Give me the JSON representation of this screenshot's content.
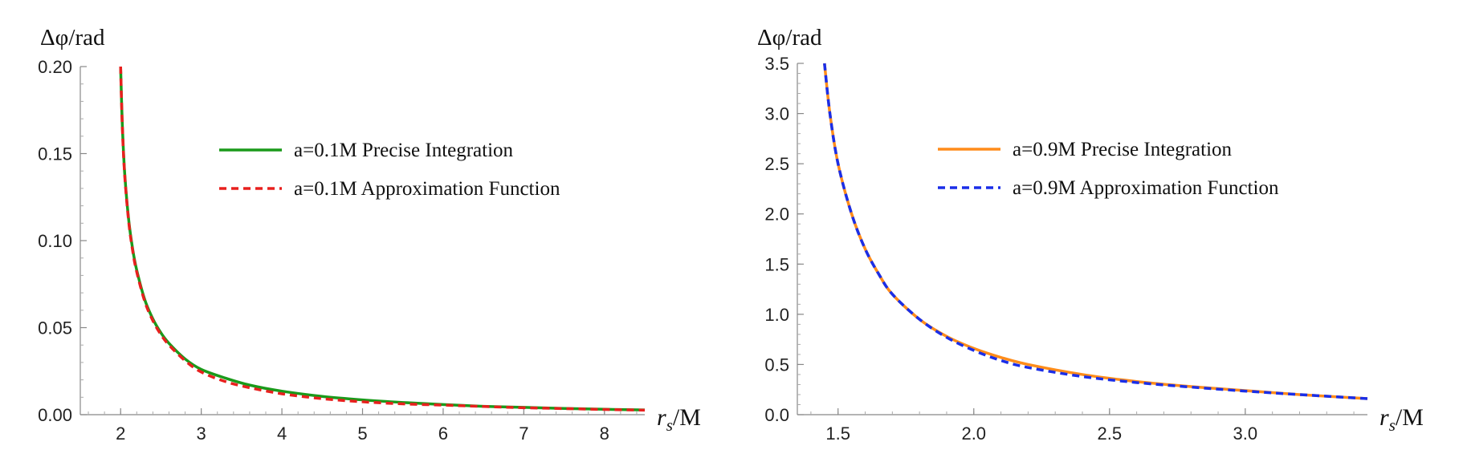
{
  "chart_data": [
    {
      "type": "line",
      "ylabel": "Δφ/rad",
      "xlabel_main": "r",
      "xlabel_sub": "s",
      "xlabel_suffix": "/M",
      "xlim": [
        1.5,
        8.5
      ],
      "ylim": [
        0,
        0.2
      ],
      "xticks": [
        2,
        3,
        4,
        5,
        6,
        7,
        8
      ],
      "xtick_labels": [
        "2",
        "3",
        "4",
        "5",
        "6",
        "7",
        "8"
      ],
      "yticks": [
        0,
        0.05,
        0.1,
        0.15,
        0.2
      ],
      "ytick_labels": [
        "0.00",
        "0.05",
        "0.10",
        "0.15",
        "0.20"
      ],
      "series": [
        {
          "name": "a=0.1M Precise Integration",
          "color": "#1a9a1a",
          "dash": false,
          "x": [
            2.0,
            2.02,
            2.05,
            2.1,
            2.15,
            2.2,
            2.3,
            2.4,
            2.5,
            2.6,
            2.8,
            3.0,
            3.3,
            3.6,
            4.0,
            4.5,
            5.0,
            5.5,
            6.0,
            6.5,
            7.0,
            7.5,
            8.0,
            8.5
          ],
          "y": [
            0.2,
            0.168,
            0.139,
            0.112,
            0.095,
            0.083,
            0.066,
            0.055,
            0.047,
            0.041,
            0.032,
            0.026,
            0.021,
            0.017,
            0.0135,
            0.0105,
            0.0085,
            0.007,
            0.0058,
            0.0048,
            0.0042,
            0.0036,
            0.0031,
            0.0027
          ]
        },
        {
          "name": "a=0.1M Approximation Function",
          "color": "#e8201e",
          "dash": true,
          "x": [
            2.0,
            2.02,
            2.05,
            2.1,
            2.15,
            2.2,
            2.3,
            2.4,
            2.5,
            2.6,
            2.8,
            3.0,
            3.3,
            3.6,
            4.0,
            4.5,
            5.0,
            5.5,
            6.0,
            6.5,
            7.0,
            7.5,
            8.0,
            8.5
          ],
          "y": [
            0.2,
            0.167,
            0.138,
            0.111,
            0.094,
            0.082,
            0.065,
            0.054,
            0.046,
            0.04,
            0.031,
            0.0245,
            0.019,
            0.0155,
            0.012,
            0.0092,
            0.0074,
            0.0062,
            0.0055,
            0.0047,
            0.004,
            0.0035,
            0.003,
            0.0026
          ]
        }
      ]
    },
    {
      "type": "line",
      "ylabel": "Δφ/rad",
      "xlabel_main": "r",
      "xlabel_sub": "s",
      "xlabel_suffix": "/M",
      "xlim": [
        1.35,
        3.45
      ],
      "ylim": [
        0,
        3.5
      ],
      "xticks": [
        1.5,
        2.0,
        2.5,
        3.0
      ],
      "xtick_labels": [
        "1.5",
        "2.0",
        "2.5",
        "3.0"
      ],
      "yticks": [
        0,
        0.5,
        1.0,
        1.5,
        2.0,
        2.5,
        3.0,
        3.5
      ],
      "ytick_labels": [
        "0.0",
        "0.5",
        "1.0",
        "1.5",
        "2.0",
        "2.5",
        "3.0",
        "3.5"
      ],
      "series": [
        {
          "name": "a=0.9M Precise Integration",
          "color": "#ff8c1a",
          "dash": false,
          "x": [
            1.45,
            1.47,
            1.5,
            1.55,
            1.6,
            1.65,
            1.7,
            1.8,
            1.9,
            2.0,
            2.1,
            2.2,
            2.4,
            2.6,
            2.8,
            3.0,
            3.2,
            3.45
          ],
          "y": [
            3.5,
            3.0,
            2.5,
            2.0,
            1.65,
            1.4,
            1.2,
            0.95,
            0.78,
            0.66,
            0.57,
            0.5,
            0.4,
            0.33,
            0.28,
            0.24,
            0.2,
            0.16
          ]
        },
        {
          "name": "a=0.9M Approximation Function",
          "color": "#1a2ee8",
          "dash": true,
          "x": [
            1.45,
            1.47,
            1.5,
            1.55,
            1.6,
            1.65,
            1.7,
            1.8,
            1.9,
            2.0,
            2.1,
            2.2,
            2.4,
            2.6,
            2.8,
            3.0,
            3.2,
            3.45
          ],
          "y": [
            3.5,
            3.0,
            2.5,
            2.0,
            1.65,
            1.4,
            1.2,
            0.95,
            0.77,
            0.64,
            0.54,
            0.47,
            0.38,
            0.32,
            0.275,
            0.235,
            0.2,
            0.16
          ]
        }
      ]
    }
  ]
}
